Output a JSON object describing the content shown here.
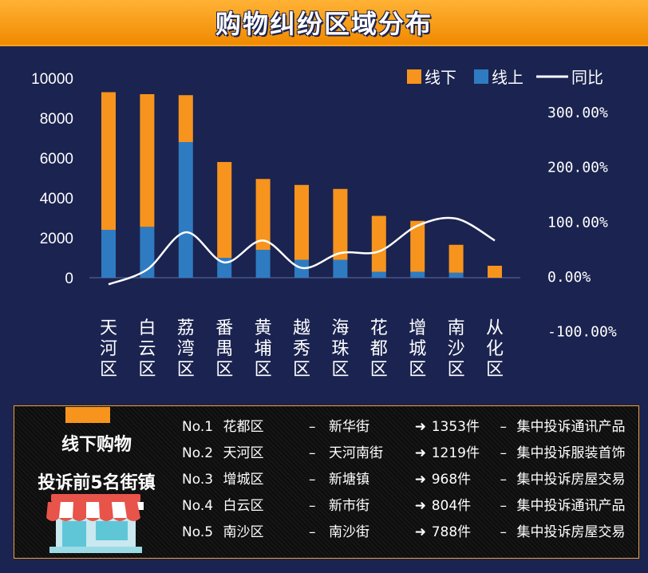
{
  "header": {
    "title": "购物纠纷区域分布"
  },
  "chart_data": {
    "type": "bar",
    "stacked": true,
    "categories": [
      "天河区",
      "白云区",
      "荔湾区",
      "番禺区",
      "黄埔区",
      "越秀区",
      "海珠区",
      "花都区",
      "增城区",
      "南沙区",
      "从化区"
    ],
    "series": [
      {
        "name": "线上",
        "type": "bar",
        "axis": "left",
        "color": "#2f7bc1",
        "values": [
          2400,
          2550,
          6800,
          1000,
          1400,
          900,
          900,
          300,
          300,
          250,
          0
        ]
      },
      {
        "name": "线下",
        "type": "bar",
        "axis": "left",
        "color": "#f7941d",
        "values": [
          6900,
          6650,
          2350,
          4800,
          3550,
          3750,
          3550,
          2800,
          2550,
          1400,
          600
        ]
      },
      {
        "name": "同比",
        "type": "line",
        "axis": "right",
        "color": "#ffffff",
        "values": [
          -0.15,
          0.12,
          0.8,
          0.25,
          0.65,
          0.15,
          0.42,
          0.45,
          0.92,
          1.05,
          0.65
        ]
      }
    ],
    "legend": [
      {
        "name": "线下",
        "kind": "box",
        "color": "#f7941d"
      },
      {
        "name": "线上",
        "kind": "box",
        "color": "#2f7bc1"
      },
      {
        "name": "同比",
        "kind": "line",
        "color": "#ffffff"
      }
    ],
    "legend_position": "top-right",
    "ylim": [
      0,
      10000
    ],
    "yticks": [
      "10000",
      "8000",
      "6000",
      "4000",
      "2000",
      "0"
    ],
    "y2lim": [
      -1.0,
      3.5
    ],
    "y2ticks": [
      "300.00%",
      "200.00%",
      "100.00%",
      "0.00%",
      "-100.00%"
    ],
    "grid": false
  },
  "ranking": {
    "side_title_1": "线下购物",
    "side_title_2": "投诉前5名街镇",
    "icon": "storefront-icon",
    "rows": [
      {
        "no": "No.1",
        "district": "花都区",
        "dash1": "–",
        "street": "新华街",
        "arrow": "➜",
        "count": "1353件",
        "dash2": "–",
        "note": "集中投诉通讯产品"
      },
      {
        "no": "No.2",
        "district": "天河区",
        "dash1": "–",
        "street": "天河南街",
        "arrow": "➜",
        "count": "1219件",
        "dash2": "–",
        "note": "集中投诉服装首饰"
      },
      {
        "no": "No.3",
        "district": "增城区",
        "dash1": "–",
        "street": "新塘镇",
        "arrow": "➜",
        "count": "968件",
        "dash2": "–",
        "note": "集中投诉房屋交易"
      },
      {
        "no": "No.4",
        "district": "白云区",
        "dash1": "–",
        "street": "新市街",
        "arrow": "➜",
        "count": "804件",
        "dash2": "–",
        "note": "集中投诉通讯产品"
      },
      {
        "no": "No.5",
        "district": "南沙区",
        "dash1": "–",
        "street": "南沙街",
        "arrow": "➜",
        "count": "788件",
        "dash2": "–",
        "note": "集中投诉房屋交易"
      }
    ]
  }
}
